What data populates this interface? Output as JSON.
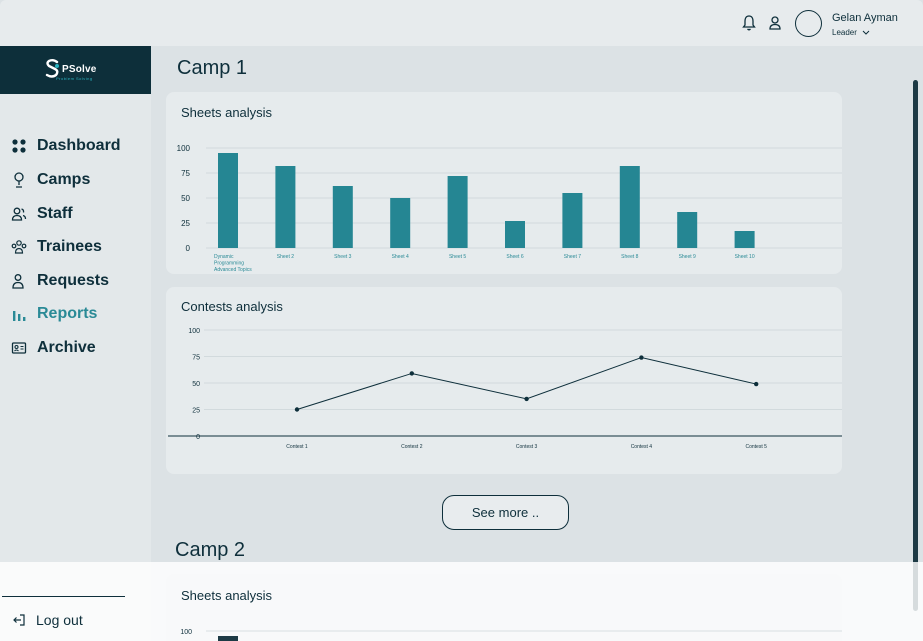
{
  "header": {
    "user_name": "Gelan Ayman",
    "user_role": "Leader",
    "notification_icon": "bell-icon",
    "profile_icon": "user-icon"
  },
  "brand": {
    "logo_text": "PSolve",
    "logo_subtitle": "Problem Solving"
  },
  "sidebar": {
    "items": [
      {
        "label": "Dashboard",
        "icon": "dashboard-icon",
        "active": false
      },
      {
        "label": "Camps",
        "icon": "camps-icon",
        "active": false
      },
      {
        "label": "Staff",
        "icon": "staff-icon",
        "active": false
      },
      {
        "label": "Trainees",
        "icon": "trainees-icon",
        "active": false
      },
      {
        "label": "Requests",
        "icon": "requests-icon",
        "active": false
      },
      {
        "label": "Reports",
        "icon": "reports-icon",
        "active": true
      },
      {
        "label": "Archive",
        "icon": "archive-icon",
        "active": false
      }
    ],
    "logout_label": "Log out"
  },
  "main": {
    "camp1_title": "Camp 1",
    "camp2_title": "Camp 2",
    "sheets_title": "Sheets analysis",
    "contests_title": "Contests analysis",
    "camp2_sheets_title": "Sheets analysis",
    "see_more_label": "See more .."
  },
  "colors": {
    "accent": "#2a8a96",
    "brand_dark": "#0d2f3a",
    "bar": "#258693"
  },
  "chart_data": [
    {
      "type": "bar",
      "title": "Sheets analysis",
      "categories": [
        "Dynamic Programming Advanced Topics",
        "Sheet 2",
        "Sheet 3",
        "Sheet 4",
        "Sheet 5",
        "Sheet 6",
        "Sheet 7",
        "Sheet 8",
        "Sheet 9",
        "Sheet 10"
      ],
      "values": [
        95,
        82,
        62,
        50,
        72,
        27,
        55,
        82,
        36,
        17
      ],
      "y_ticks": [
        0,
        25,
        50,
        75,
        100
      ],
      "ylim": [
        0,
        100
      ],
      "grid": true
    },
    {
      "type": "line",
      "title": "Contests analysis",
      "categories": [
        "Contest 1",
        "Contest 2",
        "Contest 3",
        "Contest 4",
        "Contest 5"
      ],
      "values": [
        25,
        59,
        35,
        74,
        49
      ],
      "y_ticks": [
        0,
        25,
        50,
        75,
        100
      ],
      "ylim": [
        0,
        100
      ],
      "grid": true
    },
    {
      "type": "bar",
      "title": "Sheets analysis",
      "categories": [],
      "values": [],
      "y_ticks": [
        100
      ],
      "ylim": [
        0,
        100
      ],
      "grid": true
    }
  ]
}
